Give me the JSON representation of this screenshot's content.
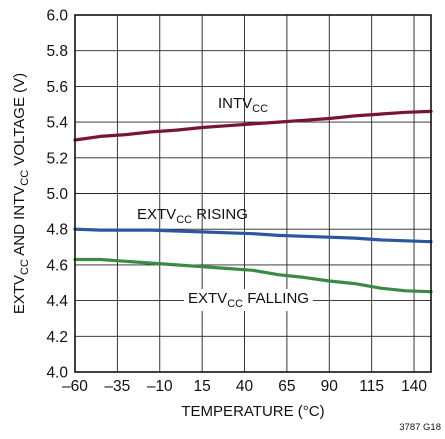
{
  "chart_data": {
    "type": "line",
    "title": "",
    "xlabel": "TEMPERATURE (°C)",
    "ylabel_parts": [
      "EXTV",
      "CC",
      " AND INTV",
      "CC",
      " VOLTAGE (V)"
    ],
    "xlim": [
      -60,
      150
    ],
    "ylim": [
      4.0,
      6.0
    ],
    "x_ticks": [
      -60,
      -35,
      -10,
      15,
      40,
      65,
      90,
      115,
      140
    ],
    "x_tick_labels": [
      "–60",
      "–35",
      "–10",
      "15",
      "40",
      "65",
      "90",
      "115",
      "140"
    ],
    "y_ticks": [
      4.0,
      4.2,
      4.4,
      4.6,
      4.8,
      5.0,
      5.2,
      5.4,
      5.6,
      5.8,
      6.0
    ],
    "y_tick_labels": [
      "4.0",
      "4.2",
      "4.4",
      "4.6",
      "4.8",
      "5.0",
      "5.2",
      "5.4",
      "5.6",
      "5.8",
      "6.0"
    ],
    "grid": true,
    "series": [
      {
        "name": "INTVCC",
        "label_parts": [
          "INTV",
          "CC"
        ],
        "color": "#7a1530",
        "x": [
          -60,
          -45,
          -30,
          -15,
          0,
          15,
          30,
          45,
          60,
          75,
          90,
          105,
          120,
          135,
          150
        ],
        "y": [
          5.3,
          5.32,
          5.33,
          5.345,
          5.355,
          5.37,
          5.38,
          5.39,
          5.4,
          5.41,
          5.42,
          5.435,
          5.445,
          5.455,
          5.46
        ]
      },
      {
        "name": "EXTVCC RISING",
        "label_parts": [
          "EXTV",
          "CC",
          " RISING"
        ],
        "color": "#2c56a0",
        "x": [
          -60,
          -45,
          -30,
          -15,
          0,
          15,
          30,
          45,
          60,
          75,
          90,
          105,
          120,
          135,
          150
        ],
        "y": [
          4.8,
          4.795,
          4.795,
          4.795,
          4.79,
          4.785,
          4.78,
          4.775,
          4.765,
          4.76,
          4.755,
          4.75,
          4.74,
          4.735,
          4.73
        ]
      },
      {
        "name": "EXTVCC FALLING",
        "label_parts": [
          "EXTV",
          "CC",
          " FALLING"
        ],
        "color": "#3a8a45",
        "x": [
          -60,
          -45,
          -30,
          -15,
          0,
          15,
          30,
          45,
          60,
          75,
          90,
          105,
          120,
          135,
          150
        ],
        "y": [
          4.63,
          4.63,
          4.62,
          4.61,
          4.6,
          4.59,
          4.58,
          4.57,
          4.545,
          4.53,
          4.51,
          4.495,
          4.47,
          4.455,
          4.45
        ]
      }
    ],
    "figure_id": "3787 G18"
  }
}
